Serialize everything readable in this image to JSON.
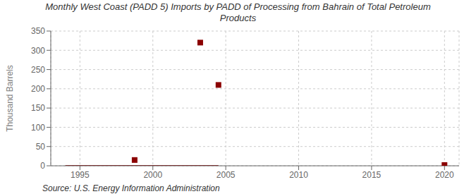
{
  "chart_data": {
    "type": "scatter",
    "title": "Monthly West Coast (PADD 5) Imports by PADD of Processing from Bahrain of Total Petroleum\nProducts",
    "ylabel": "Thousand Barrels",
    "annotations": [
      "Source: U.S. Energy Information Administration"
    ],
    "xlim": [
      1993,
      2021
    ],
    "ylim": [
      0,
      350
    ],
    "xticks": [
      1995,
      2000,
      2005,
      2010,
      2015,
      2020
    ],
    "yticks": [
      0,
      50,
      100,
      150,
      200,
      250,
      300,
      350
    ],
    "grid": true,
    "series": [
      {
        "type": "line",
        "color": "#8b0000",
        "line_style": "solid",
        "x": [
          1994.0,
          2004.5
        ],
        "values": [
          0,
          0
        ]
      },
      {
        "type": "scatter",
        "color": "#8b0000",
        "marker": "square",
        "x": [
          1998.75,
          2003.25,
          2004.5,
          2020.0
        ],
        "values": [
          15,
          320,
          210,
          2
        ]
      }
    ]
  }
}
